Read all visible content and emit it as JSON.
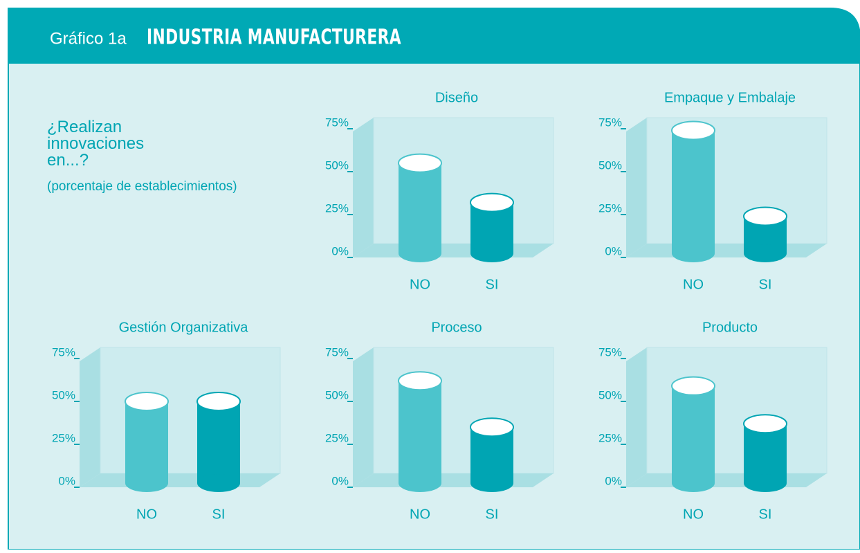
{
  "header": {
    "label": "Gráfico 1a",
    "title": "INDUSTRIA MANUFACTURERA"
  },
  "question": "¿Realizan innovaciones en...?",
  "subtitle": "(porcentaje de establecimientos)",
  "chart_data": [
    {
      "type": "bar",
      "title": "Diseño",
      "categories": [
        "NO",
        "SI"
      ],
      "values": [
        55,
        32
      ],
      "colors": [
        "#4cc4cc",
        "#00a5b3"
      ],
      "ylim": [
        0,
        75
      ],
      "yticks": [
        {
          "value": 0,
          "label": "0%"
        },
        {
          "value": 25,
          "label": "25%"
        },
        {
          "value": 50,
          "label": "50%"
        },
        {
          "value": 75,
          "label": "75%"
        }
      ]
    },
    {
      "type": "bar",
      "title": "Empaque y Embalaje",
      "categories": [
        "NO",
        "SI"
      ],
      "values": [
        74,
        24
      ],
      "colors": [
        "#4cc4cc",
        "#00a5b3"
      ],
      "ylim": [
        0,
        75
      ],
      "yticks": [
        {
          "value": 0,
          "label": "0%"
        },
        {
          "value": 25,
          "label": "25%"
        },
        {
          "value": 50,
          "label": "50%"
        },
        {
          "value": 75,
          "label": "75%"
        }
      ]
    },
    {
      "type": "bar",
      "title": "Gestión Organizativa",
      "categories": [
        "NO",
        "SI"
      ],
      "values": [
        50,
        50
      ],
      "colors": [
        "#4cc4cc",
        "#00a5b3"
      ],
      "ylim": [
        0,
        75
      ],
      "yticks": [
        {
          "value": 0,
          "label": "0%"
        },
        {
          "value": 25,
          "label": "25%"
        },
        {
          "value": 50,
          "label": "50%"
        },
        {
          "value": 75,
          "label": "75%"
        }
      ]
    },
    {
      "type": "bar",
      "title": "Proceso",
      "categories": [
        "NO",
        "SI"
      ],
      "values": [
        62,
        35
      ],
      "colors": [
        "#4cc4cc",
        "#00a5b3"
      ],
      "ylim": [
        0,
        75
      ],
      "yticks": [
        {
          "value": 0,
          "label": "0%"
        },
        {
          "value": 25,
          "label": "25%"
        },
        {
          "value": 50,
          "label": "50%"
        },
        {
          "value": 75,
          "label": "75%"
        }
      ]
    },
    {
      "type": "bar",
      "title": "Producto",
      "categories": [
        "NO",
        "SI"
      ],
      "values": [
        59,
        37
      ],
      "colors": [
        "#4cc4cc",
        "#00a5b3"
      ],
      "ylim": [
        0,
        75
      ],
      "yticks": [
        {
          "value": 0,
          "label": "0%"
        },
        {
          "value": 25,
          "label": "25%"
        },
        {
          "value": 50,
          "label": "50%"
        },
        {
          "value": 75,
          "label": "75%"
        }
      ]
    }
  ]
}
